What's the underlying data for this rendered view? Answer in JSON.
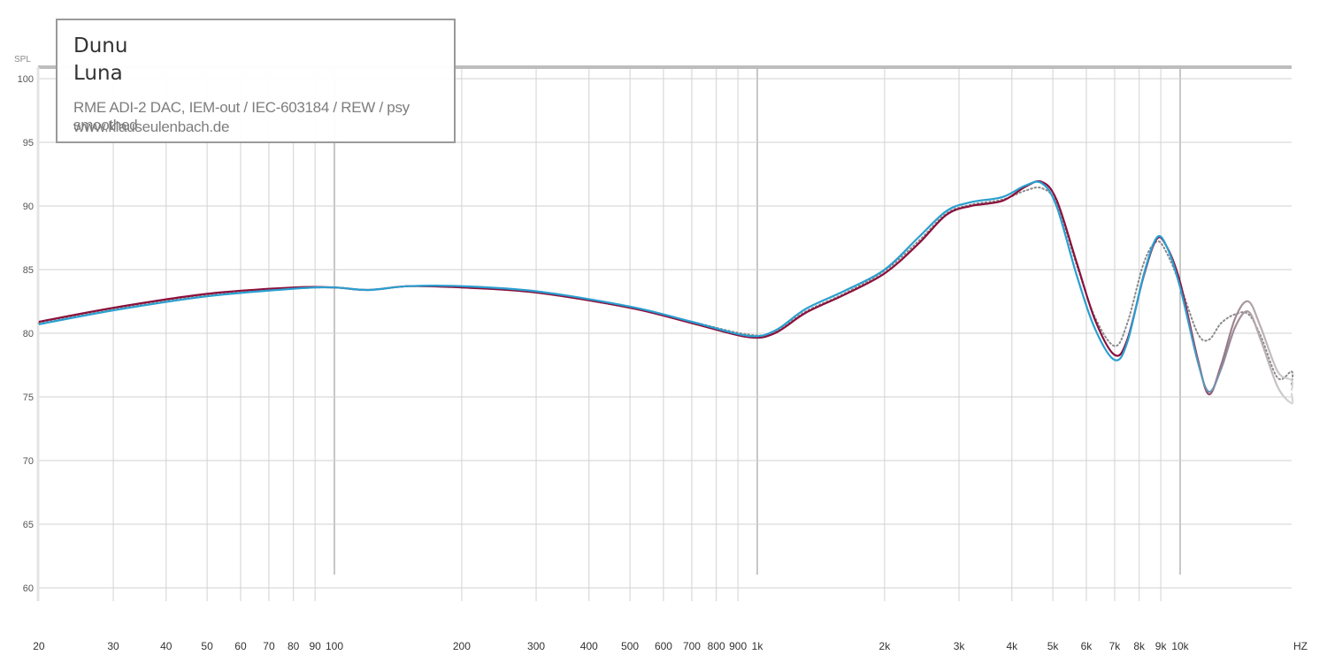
{
  "legend": {
    "brand": "Dunu",
    "model": "Luna",
    "setup": "RME ADI-2 DAC, IEM-out / IEC-603184 / REW / psy smoothed",
    "site": "www.klauseulenbach.de"
  },
  "colors": {
    "channel_a": "#8b0f3c",
    "channel_b": "#2a9fd0",
    "dotted": "#8a8a8a",
    "grid": "#d2d2d2",
    "grid_major": "#8f8f8f"
  },
  "chart_data": {
    "type": "line",
    "xscale": "log",
    "xlim": [
      20,
      20000
    ],
    "ylim": [
      60,
      100
    ],
    "ylabel": "SPL",
    "xlabel": "HZ",
    "grid": true,
    "legend_position": "top-left",
    "y_ticks": [
      60,
      65,
      70,
      75,
      80,
      85,
      90,
      95,
      100
    ],
    "x_ticks": [
      {
        "value": 20,
        "label": "20"
      },
      {
        "value": 30,
        "label": "30"
      },
      {
        "value": 40,
        "label": "40"
      },
      {
        "value": 50,
        "label": "50"
      },
      {
        "value": 60,
        "label": "60"
      },
      {
        "value": 70,
        "label": "70"
      },
      {
        "value": 80,
        "label": "80"
      },
      {
        "value": 90,
        "label": "90"
      },
      {
        "value": 100,
        "label": "100"
      },
      {
        "value": 200,
        "label": "200"
      },
      {
        "value": 300,
        "label": "300"
      },
      {
        "value": 400,
        "label": "400"
      },
      {
        "value": 500,
        "label": "500"
      },
      {
        "value": 600,
        "label": "600"
      },
      {
        "value": 700,
        "label": "700"
      },
      {
        "value": 800,
        "label": "800"
      },
      {
        "value": 900,
        "label": "900"
      },
      {
        "value": 1000,
        "label": "1k"
      },
      {
        "value": 2000,
        "label": "2k"
      },
      {
        "value": 3000,
        "label": "3k"
      },
      {
        "value": 4000,
        "label": "4k"
      },
      {
        "value": 5000,
        "label": "5k"
      },
      {
        "value": 6000,
        "label": "6k"
      },
      {
        "value": 7000,
        "label": "7k"
      },
      {
        "value": 8000,
        "label": "8k"
      },
      {
        "value": 9000,
        "label": "9k"
      },
      {
        "value": 10000,
        "label": "10k"
      }
    ],
    "series": [
      {
        "style": "solid",
        "points": [
          [
            20,
            80.9
          ],
          [
            30,
            82.0
          ],
          [
            50,
            83.1
          ],
          [
            80,
            83.6
          ],
          [
            100,
            83.6
          ],
          [
            120,
            83.4
          ],
          [
            150,
            83.7
          ],
          [
            200,
            83.6
          ],
          [
            300,
            83.2
          ],
          [
            500,
            82.0
          ],
          [
            700,
            80.8
          ],
          [
            950,
            79.7
          ],
          [
            1100,
            80.0
          ],
          [
            1300,
            81.6
          ],
          [
            1600,
            83.0
          ],
          [
            2000,
            84.7
          ],
          [
            2400,
            87.0
          ],
          [
            2800,
            89.3
          ],
          [
            3200,
            90.0
          ],
          [
            3800,
            90.4
          ],
          [
            4300,
            91.5
          ],
          [
            4700,
            91.9
          ],
          [
            5100,
            90.5
          ],
          [
            5700,
            85.5
          ],
          [
            6300,
            81.0
          ],
          [
            7000,
            78.3
          ],
          [
            7500,
            79.5
          ],
          [
            8200,
            84.5
          ],
          [
            8800,
            87.4
          ],
          [
            9300,
            86.8
          ],
          [
            10000,
            84.0
          ],
          [
            11000,
            78.0
          ],
          [
            11700,
            75.2
          ],
          [
            12500,
            77.5
          ],
          [
            13500,
            81.2
          ],
          [
            14500,
            82.5
          ],
          [
            15500,
            80.5
          ],
          [
            17000,
            77.0
          ],
          [
            18500,
            76.3
          ],
          [
            20000,
            75.5
          ]
        ]
      },
      {
        "style": "solid",
        "points": [
          [
            20,
            80.7
          ],
          [
            30,
            81.8
          ],
          [
            50,
            82.9
          ],
          [
            80,
            83.5
          ],
          [
            100,
            83.6
          ],
          [
            120,
            83.4
          ],
          [
            150,
            83.7
          ],
          [
            200,
            83.7
          ],
          [
            300,
            83.3
          ],
          [
            500,
            82.1
          ],
          [
            700,
            80.9
          ],
          [
            950,
            79.8
          ],
          [
            1100,
            80.2
          ],
          [
            1300,
            81.9
          ],
          [
            1600,
            83.3
          ],
          [
            2000,
            85.0
          ],
          [
            2400,
            87.5
          ],
          [
            2800,
            89.6
          ],
          [
            3200,
            90.3
          ],
          [
            3800,
            90.7
          ],
          [
            4300,
            91.6
          ],
          [
            4700,
            91.8
          ],
          [
            5100,
            90.0
          ],
          [
            5700,
            84.5
          ],
          [
            6300,
            80.3
          ],
          [
            7000,
            77.9
          ],
          [
            7500,
            79.3
          ],
          [
            8200,
            84.6
          ],
          [
            8800,
            87.5
          ],
          [
            9300,
            86.8
          ],
          [
            10000,
            83.6
          ],
          [
            11000,
            77.8
          ],
          [
            11700,
            75.4
          ],
          [
            12500,
            77.2
          ],
          [
            13500,
            80.5
          ],
          [
            14500,
            81.7
          ],
          [
            15500,
            79.5
          ],
          [
            17000,
            75.8
          ],
          [
            18500,
            74.5
          ],
          [
            20000,
            75.3
          ]
        ]
      },
      {
        "style": "dotted",
        "points": [
          [
            20,
            80.8
          ],
          [
            30,
            81.9
          ],
          [
            50,
            83.0
          ],
          [
            80,
            83.5
          ],
          [
            100,
            83.6
          ],
          [
            120,
            83.4
          ],
          [
            150,
            83.7
          ],
          [
            200,
            83.6
          ],
          [
            300,
            83.2
          ],
          [
            500,
            82.0
          ],
          [
            700,
            80.9
          ],
          [
            950,
            79.9
          ],
          [
            1100,
            80.1
          ],
          [
            1300,
            81.7
          ],
          [
            1600,
            83.1
          ],
          [
            2000,
            84.9
          ],
          [
            2400,
            87.2
          ],
          [
            2800,
            89.4
          ],
          [
            3200,
            90.1
          ],
          [
            3800,
            90.5
          ],
          [
            4300,
            91.2
          ],
          [
            4700,
            91.4
          ],
          [
            5100,
            90.2
          ],
          [
            5700,
            85.3
          ],
          [
            6300,
            81.2
          ],
          [
            7000,
            79.0
          ],
          [
            7500,
            80.8
          ],
          [
            8200,
            85.5
          ],
          [
            8800,
            87.2
          ],
          [
            9300,
            86.3
          ],
          [
            10000,
            83.8
          ],
          [
            11000,
            80.0
          ],
          [
            11700,
            79.5
          ],
          [
            12500,
            80.8
          ],
          [
            13500,
            81.5
          ],
          [
            14500,
            81.5
          ],
          [
            15500,
            79.8
          ],
          [
            17000,
            76.5
          ],
          [
            18500,
            77.0
          ],
          [
            20000,
            76.0
          ]
        ]
      }
    ]
  }
}
